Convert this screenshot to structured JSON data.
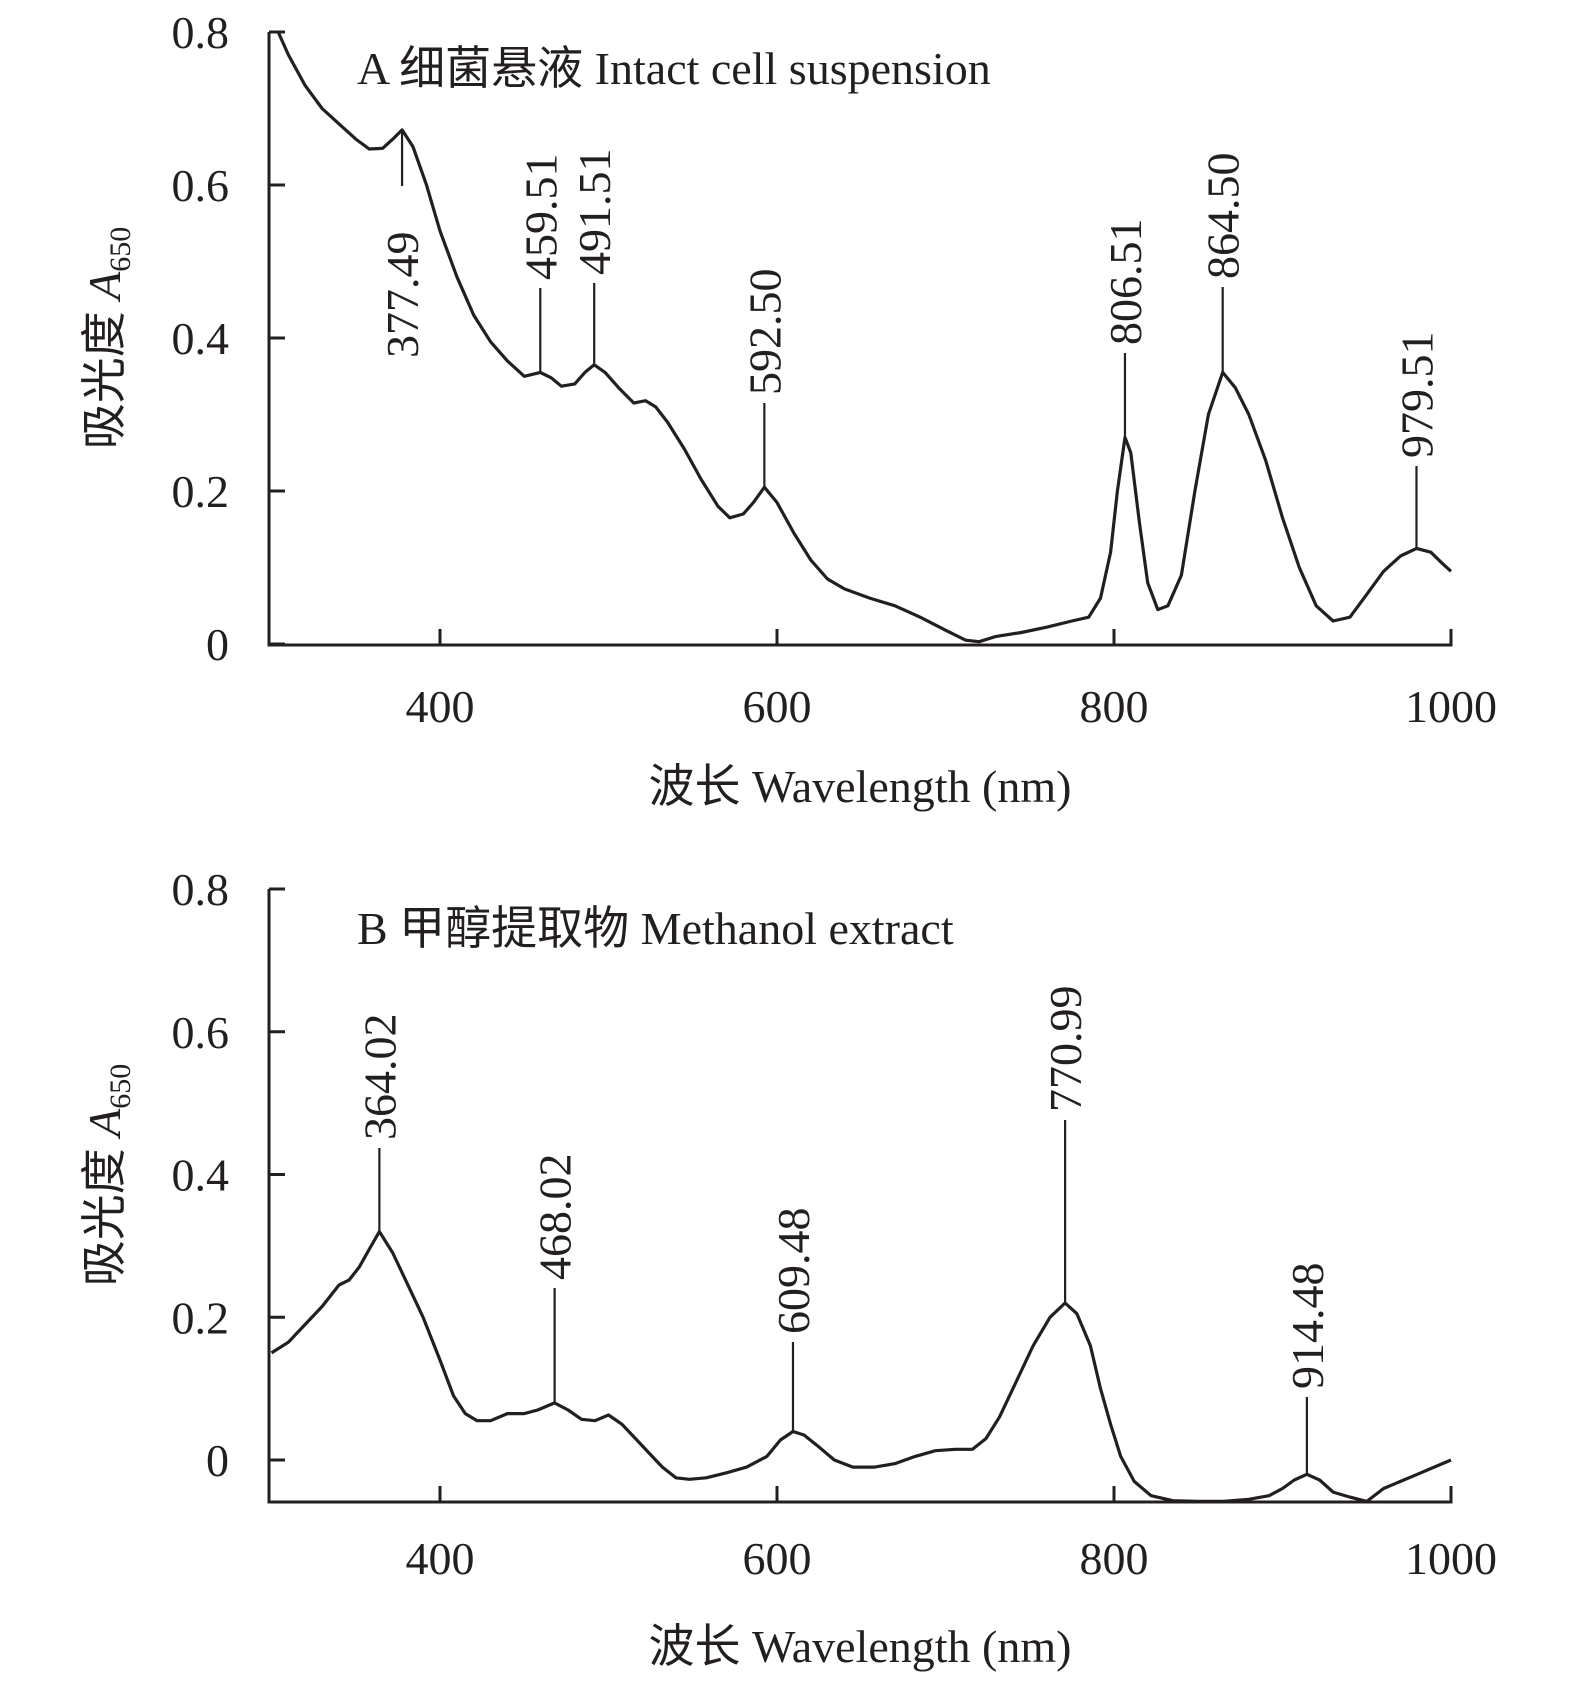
{
  "chart_data": [
    {
      "type": "line",
      "panel": "A",
      "title": "A 细菌悬液 Intact cell suspension",
      "xlabel": "波长 Wavelength (nm)",
      "ylabel": "吸光度",
      "ylabel_symbol": "A",
      "ylabel_subscript": "650",
      "xlim": [
        300,
        1000
      ],
      "ylim": [
        0,
        0.8
      ],
      "xticks": [
        400,
        600,
        800,
        1000
      ],
      "xtick_labels": [
        "400",
        "600",
        "800",
        "1000"
      ],
      "yticks": [
        0,
        0.2,
        0.4,
        0.6,
        0.8
      ],
      "ytick_labels": [
        "0",
        "0.2",
        "0.4",
        "0.6",
        "0.8"
      ],
      "grid": false,
      "series": [
        {
          "name": "Intact cell suspension",
          "x": [
            304,
            310,
            320,
            330,
            340,
            350,
            358,
            366,
            372,
            377.49,
            384,
            392,
            400,
            410,
            420,
            430,
            440,
            450,
            459.51,
            466,
            472,
            480,
            486,
            491.51,
            498,
            506,
            515,
            522,
            528,
            535,
            545,
            555,
            565,
            572,
            580,
            586,
            592.5,
            600,
            610,
            620,
            630,
            640,
            655,
            670,
            685,
            700,
            712,
            720,
            730,
            745,
            760,
            775,
            785,
            792,
            798,
            802,
            806.51,
            810,
            815,
            820,
            826,
            832,
            840,
            848,
            856,
            864.5,
            872,
            880,
            890,
            900,
            910,
            920,
            930,
            940,
            950,
            960,
            970,
            979.51,
            988,
            995,
            1000
          ],
          "y": [
            0.8,
            0.77,
            0.73,
            0.7,
            0.68,
            0.66,
            0.647,
            0.648,
            0.66,
            0.672,
            0.65,
            0.6,
            0.54,
            0.48,
            0.43,
            0.395,
            0.37,
            0.35,
            0.355,
            0.348,
            0.337,
            0.34,
            0.355,
            0.365,
            0.355,
            0.335,
            0.315,
            0.318,
            0.31,
            0.29,
            0.255,
            0.215,
            0.18,
            0.165,
            0.17,
            0.185,
            0.205,
            0.185,
            0.145,
            0.11,
            0.085,
            0.072,
            0.06,
            0.05,
            0.035,
            0.018,
            0.005,
            0.003,
            0.01,
            0.015,
            0.022,
            0.03,
            0.035,
            0.06,
            0.12,
            0.2,
            0.27,
            0.25,
            0.16,
            0.08,
            0.045,
            0.05,
            0.09,
            0.2,
            0.3,
            0.355,
            0.335,
            0.3,
            0.24,
            0.165,
            0.1,
            0.05,
            0.03,
            0.035,
            0.065,
            0.095,
            0.115,
            0.125,
            0.12,
            0.105,
            0.095
          ]
        }
      ],
      "peaks": [
        {
          "x": 377.49,
          "label": "377.49",
          "y": 0.672
        },
        {
          "x": 459.51,
          "label": "459.51",
          "y": 0.355
        },
        {
          "x": 491.51,
          "label": "491.51",
          "y": 0.365
        },
        {
          "x": 592.5,
          "label": "592.50",
          "y": 0.205
        },
        {
          "x": 806.51,
          "label": "806.51",
          "y": 0.27
        },
        {
          "x": 864.5,
          "label": "864.50",
          "y": 0.355
        },
        {
          "x": 979.51,
          "label": "979.51",
          "y": 0.125
        }
      ]
    },
    {
      "type": "line",
      "panel": "B",
      "title": "B 甲醇提取物 Methanol extract",
      "xlabel": "波长 Wavelength (nm)",
      "ylabel": "吸光度",
      "ylabel_symbol": "A",
      "ylabel_subscript": "650",
      "xlim": [
        300,
        1000
      ],
      "ylim": [
        -0.06,
        0.8
      ],
      "xticks": [
        400,
        600,
        800,
        1000
      ],
      "xtick_labels": [
        "400",
        "600",
        "800",
        "1000"
      ],
      "yticks": [
        0,
        0.2,
        0.4,
        0.6,
        0.8
      ],
      "ytick_labels": [
        "0",
        "0.2",
        "0.4",
        "0.6",
        "0.8"
      ],
      "grid": false,
      "series": [
        {
          "name": "Methanol extract",
          "x": [
            300,
            310,
            320,
            330,
            340,
            346,
            352,
            358,
            364.02,
            372,
            380,
            390,
            400,
            408,
            415,
            422,
            430,
            440,
            450,
            458,
            468.02,
            476,
            484,
            492,
            500,
            508,
            516,
            524,
            532,
            540,
            548,
            558,
            570,
            582,
            594,
            602,
            609.48,
            616,
            624,
            634,
            645,
            658,
            670,
            682,
            694,
            706,
            716,
            724,
            732,
            742,
            752,
            762,
            770.99,
            778,
            786,
            792,
            798,
            804,
            812,
            822,
            835,
            850,
            865,
            880,
            892,
            900,
            907,
            914.48,
            922,
            930,
            940,
            950,
            960,
            970,
            980,
            990,
            1000
          ],
          "y": [
            0.15,
            0.165,
            0.19,
            0.215,
            0.245,
            0.252,
            0.27,
            0.295,
            0.32,
            0.29,
            0.25,
            0.2,
            0.14,
            0.09,
            0.065,
            0.055,
            0.055,
            0.065,
            0.065,
            0.07,
            0.08,
            0.07,
            0.057,
            0.055,
            0.063,
            0.05,
            0.03,
            0.01,
            -0.01,
            -0.025,
            -0.027,
            -0.025,
            -0.018,
            -0.01,
            0.005,
            0.028,
            0.04,
            0.035,
            0.02,
            0.0,
            -0.01,
            -0.01,
            -0.005,
            0.005,
            0.013,
            0.015,
            0.015,
            0.03,
            0.06,
            0.11,
            0.16,
            0.2,
            0.22,
            0.205,
            0.16,
            0.1,
            0.05,
            0.005,
            -0.03,
            -0.05,
            -0.057,
            -0.058,
            -0.058,
            -0.055,
            -0.05,
            -0.04,
            -0.028,
            -0.02,
            -0.028,
            -0.045,
            -0.052,
            -0.058,
            -0.04,
            -0.03,
            -0.02,
            -0.01,
            0.0
          ]
        }
      ],
      "peaks": [
        {
          "x": 364.02,
          "label": "364.02",
          "y": 0.32
        },
        {
          "x": 468.02,
          "label": "468.02",
          "y": 0.08
        },
        {
          "x": 609.48,
          "label": "609.48",
          "y": 0.04
        },
        {
          "x": 770.99,
          "label": "770.99",
          "y": 0.22
        },
        {
          "x": 914.48,
          "label": "914.48",
          "y": -0.02
        }
      ]
    }
  ]
}
